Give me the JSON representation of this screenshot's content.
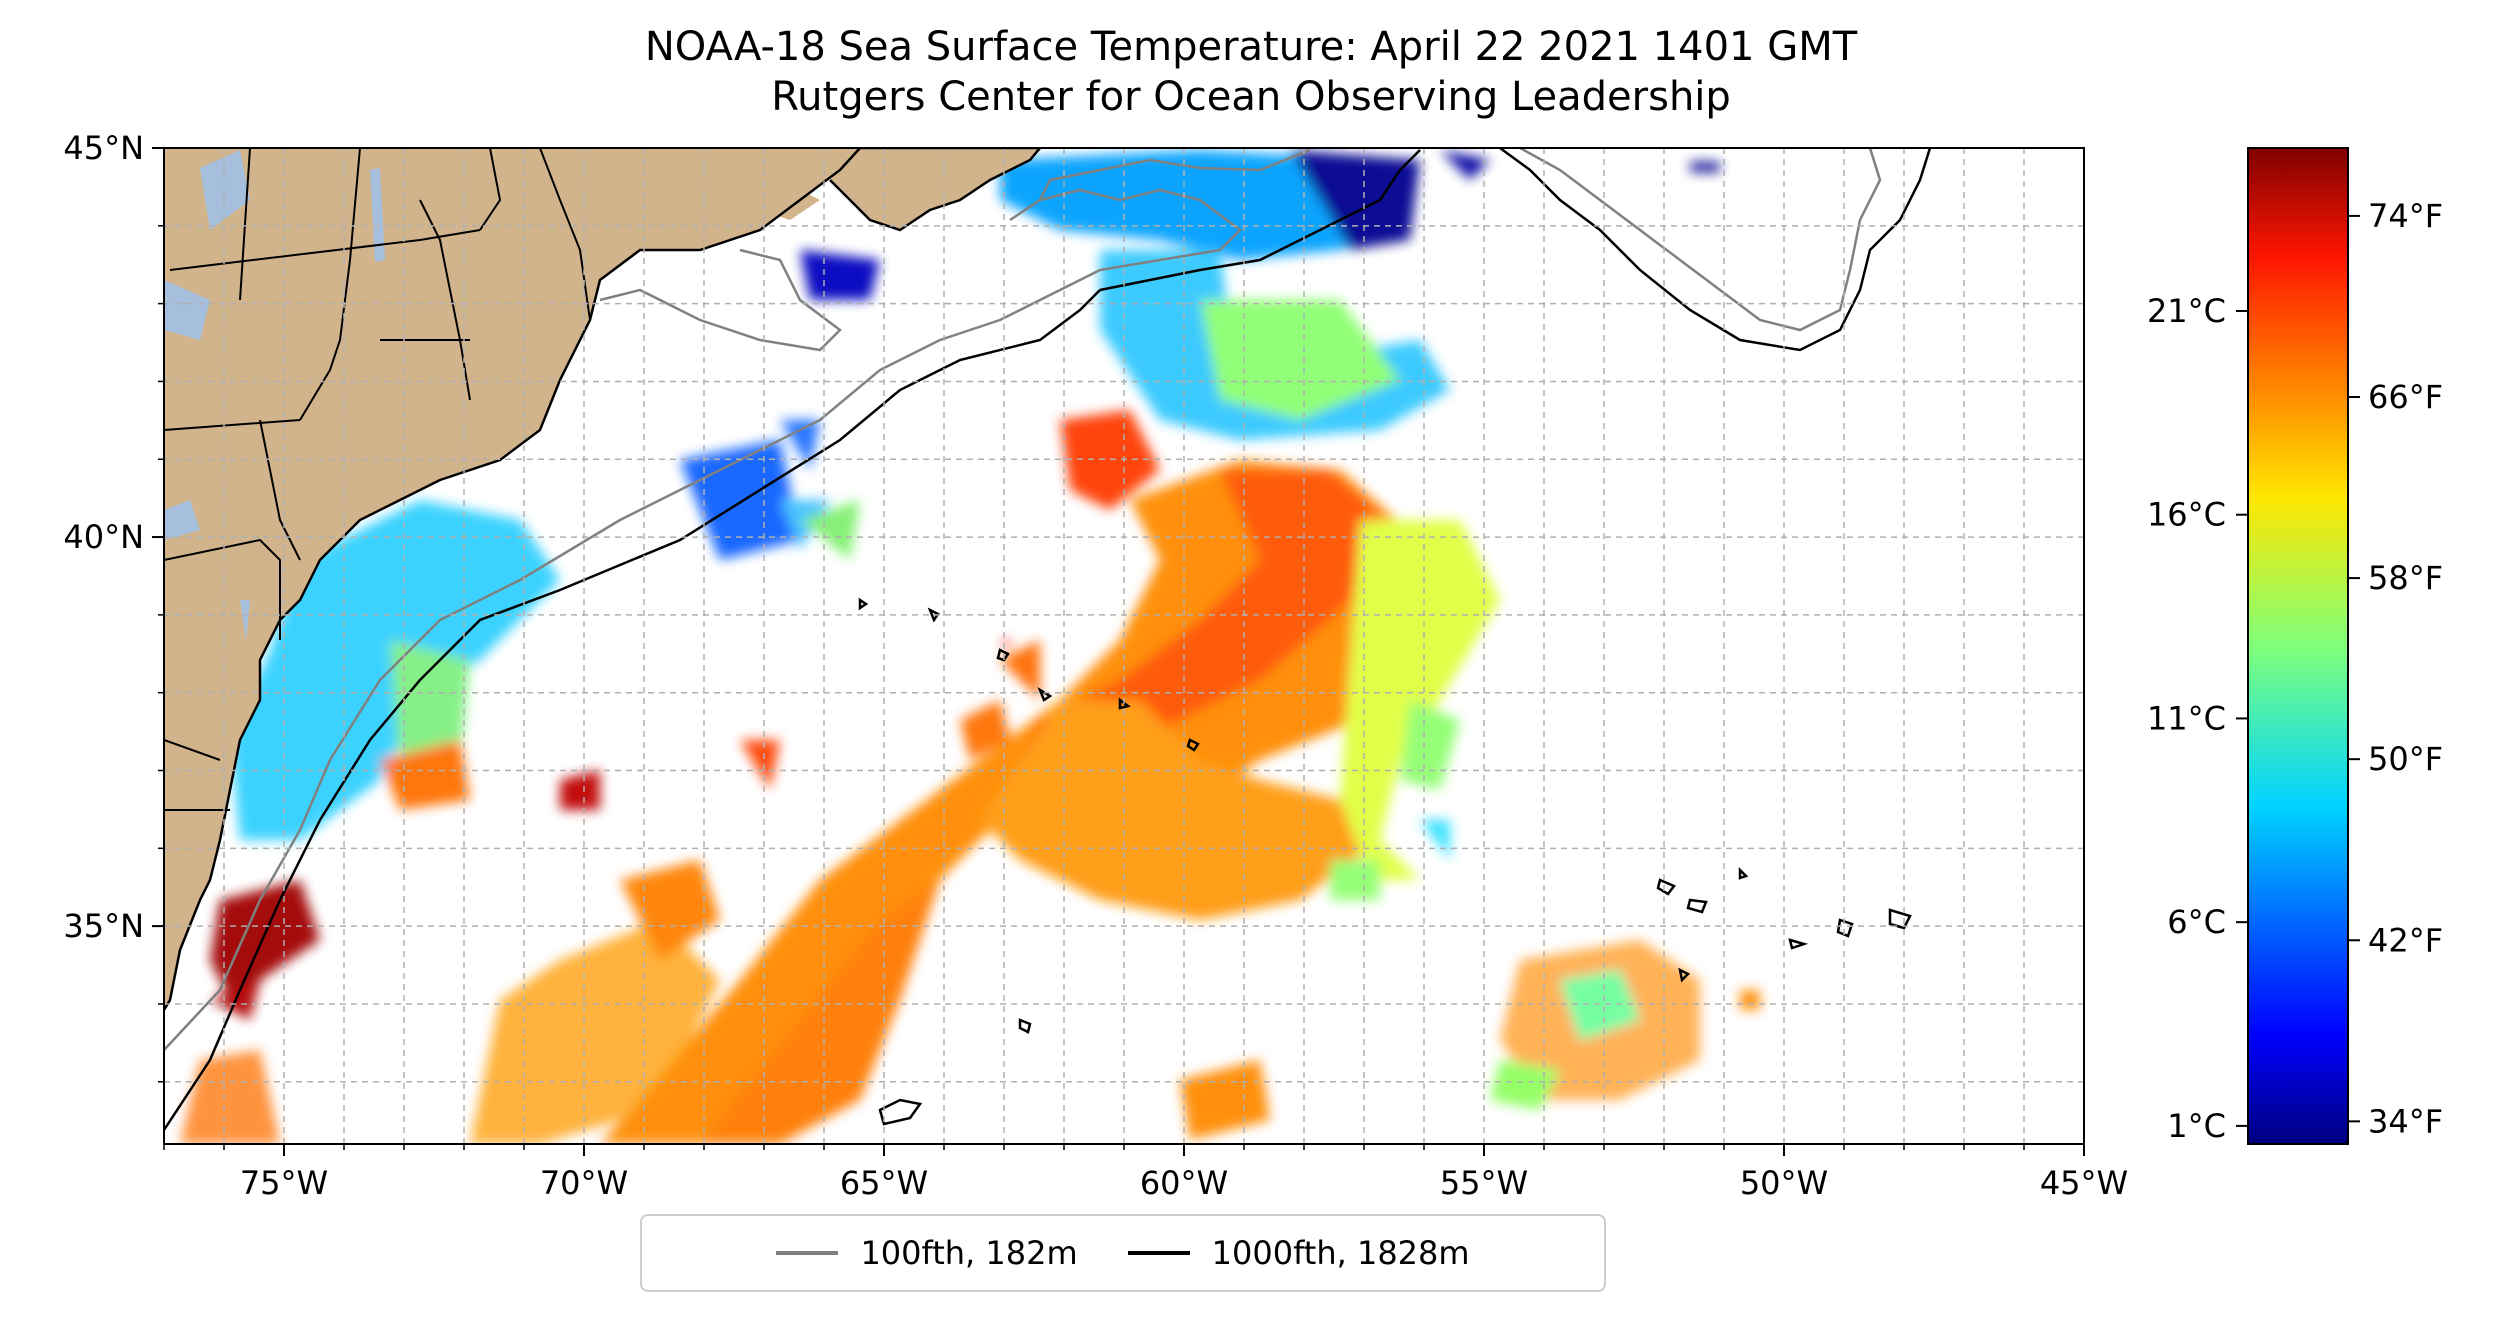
{
  "title_line1": "NOAA-18 Sea Surface Temperature: April 22 2021 1401 GMT",
  "title_line2": "Rutgers Center for Ocean Observing Leadership",
  "colors": {
    "land": "#d2b48c",
    "lakes": "#a5bfdd",
    "contour_100": "#808080",
    "contour_1000": "#000000"
  },
  "map": {
    "lon_range": [
      -77,
      -45
    ],
    "lat_range": [
      32.2,
      45
    ],
    "lon_ticks": [
      {
        "value": -75,
        "label": "75°W"
      },
      {
        "value": -70,
        "label": "70°W"
      },
      {
        "value": -65,
        "label": "65°W"
      },
      {
        "value": -60,
        "label": "60°W"
      },
      {
        "value": -55,
        "label": "55°W"
      },
      {
        "value": -50,
        "label": "50°W"
      },
      {
        "value": -45,
        "label": "45°W"
      }
    ],
    "lat_ticks": [
      {
        "value": 45,
        "label": "45°N"
      },
      {
        "value": 40,
        "label": "40°N"
      },
      {
        "value": 35,
        "label": "35°N"
      }
    ],
    "grid": "dashed"
  },
  "colorbar": {
    "colormap": "jet",
    "range_f": [
      33,
      77
    ],
    "f_ticks": [
      {
        "value": 74,
        "label": "74°F"
      },
      {
        "value": 66,
        "label": "66°F"
      },
      {
        "value": 58,
        "label": "58°F"
      },
      {
        "value": 50,
        "label": "50°F"
      },
      {
        "value": 42,
        "label": "42°F"
      },
      {
        "value": 34,
        "label": "34°F"
      }
    ],
    "c_ticks": [
      {
        "value": 21,
        "label": "21°C"
      },
      {
        "value": 16,
        "label": "16°C"
      },
      {
        "value": 11,
        "label": "11°C"
      },
      {
        "value": 6,
        "label": "6°C"
      },
      {
        "value": 1,
        "label": "1°C"
      }
    ]
  },
  "legend": {
    "items": [
      {
        "label": "100fth, 182m"
      },
      {
        "label": "1000fth, 1828m"
      }
    ]
  }
}
